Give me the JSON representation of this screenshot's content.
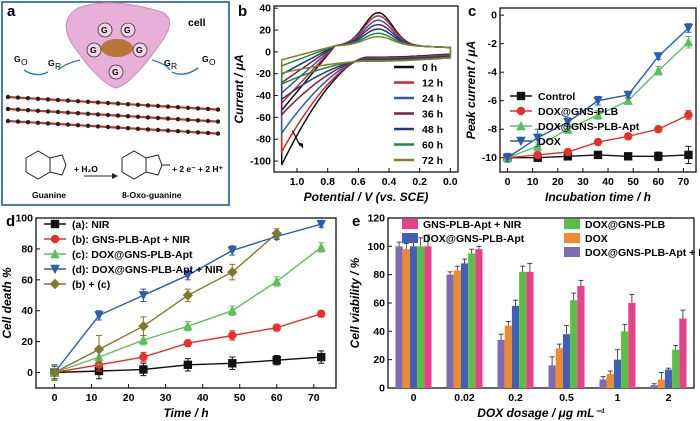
{
  "panel_a": {
    "label": "a",
    "cell_label": "cell",
    "g_o": "G",
    "g_o_sub": "O",
    "g_r": "G",
    "g_r_sub": "R",
    "molecule_left": "Guanine",
    "molecule_right": "8-Oxo-guanine",
    "reaction_water": "+ H₂O",
    "reaction_products": "+ 2 e⁻ + 2 H⁺",
    "colors": {
      "frame": "#4a7ab8",
      "cell": "#e8b0d8",
      "nucleus": "#b8743a",
      "graphene": "#c0392b"
    }
  },
  "chart_data": [
    {
      "panel": "b",
      "type": "line",
      "title": "",
      "xlabel": "Potential / V (vs. SCE)",
      "ylabel": "Current / μA",
      "xlim": [
        1.15,
        -0.05
      ],
      "x_ticks": [
        "1.0",
        "0.8",
        "0.6",
        "0.4",
        "0.2",
        "0.0"
      ],
      "x_tick_values": [
        1.0,
        0.8,
        0.6,
        0.4,
        0.2,
        0.0
      ],
      "y_ticks": [
        "-100",
        "-80",
        "-60",
        "-40",
        "-20",
        "0",
        "20",
        "40"
      ],
      "y_tick_values": [
        -100,
        -80,
        -60,
        -40,
        -20,
        0,
        20,
        40
      ],
      "ylim": [
        -110,
        42
      ],
      "legend_position": "right",
      "series": [
        {
          "name": "0 h",
          "color": "#111111",
          "peak_cathodic": -104,
          "peak_anodic": 30
        },
        {
          "name": "12 h",
          "color": "#d62728",
          "peak_cathodic": -92,
          "peak_anodic": 27
        },
        {
          "name": "24 h",
          "color": "#2a5db0",
          "peak_cathodic": -75,
          "peak_anodic": 23
        },
        {
          "name": "36 h",
          "color": "#7a1f4a",
          "peak_cathodic": -58,
          "peak_anodic": 19
        },
        {
          "name": "48 h",
          "color": "#1a3a8a",
          "peak_cathodic": -44,
          "peak_anodic": 15
        },
        {
          "name": "60 h",
          "color": "#1e8c3a",
          "peak_cathodic": -30,
          "peak_anodic": 11
        },
        {
          "name": "72 h",
          "color": "#8b7d2a",
          "peak_cathodic": -20,
          "peak_anodic": 8
        }
      ]
    },
    {
      "panel": "c",
      "type": "line",
      "xlabel": "Incubation time / h",
      "ylabel": "Peak current / μA",
      "x": [
        0,
        12,
        24,
        36,
        48,
        60,
        72
      ],
      "xlim": [
        -3,
        75
      ],
      "x_ticks": [
        "0",
        "10",
        "20",
        "30",
        "40",
        "50",
        "60",
        "70"
      ],
      "x_tick_values": [
        0,
        10,
        20,
        30,
        40,
        50,
        60,
        70
      ],
      "ylim": [
        -11,
        0.5
      ],
      "y_ticks": [
        "0",
        "-2",
        "-4",
        "-6",
        "-8",
        "-10"
      ],
      "y_tick_values": [
        0,
        -2,
        -4,
        -6,
        -8,
        -10
      ],
      "legend_position": "bottom-left",
      "series": [
        {
          "name": "Control",
          "marker": "square",
          "color": "#111111",
          "values": [
            -10.0,
            -10.0,
            -9.9,
            -9.8,
            -9.9,
            -9.9,
            -9.8
          ],
          "errors": [
            0.3,
            0.2,
            0.2,
            0.2,
            0.2,
            0.3,
            0.6
          ]
        },
        {
          "name": "DOX@GNS-PLB",
          "marker": "circle",
          "color": "#e8302a",
          "values": [
            -10.0,
            -9.8,
            -9.6,
            -8.9,
            -8.5,
            -8.0,
            -7.0
          ],
          "errors": [
            0.3,
            0.2,
            0.2,
            0.2,
            0.2,
            0.2,
            0.3
          ]
        },
        {
          "name": "DOX@GNS-PLB-Apt",
          "marker": "triangle-up",
          "color": "#5cc15c",
          "values": [
            -10.0,
            -9.2,
            -8.0,
            -7.0,
            -6.0,
            -3.9,
            -1.9
          ],
          "errors": [
            0.3,
            0.3,
            0.3,
            0.3,
            0.2,
            0.3,
            0.4
          ]
        },
        {
          "name": "DOX",
          "marker": "triangle-down",
          "color": "#2a5db0",
          "values": [
            -10.0,
            -8.6,
            -7.5,
            -6.0,
            -5.6,
            -2.9,
            -0.9
          ],
          "errors": [
            0.3,
            0.6,
            0.3,
            0.3,
            0.2,
            0.2,
            0.3
          ]
        }
      ]
    },
    {
      "panel": "d",
      "type": "line",
      "xlabel": "Time / h",
      "ylabel": "Cell death %",
      "x": [
        0,
        12,
        24,
        36,
        48,
        60,
        72
      ],
      "xlim": [
        -5,
        76
      ],
      "x_ticks": [
        "0",
        "10",
        "20",
        "30",
        "40",
        "50",
        "60",
        "70"
      ],
      "x_tick_values": [
        0,
        10,
        20,
        30,
        40,
        50,
        60,
        70
      ],
      "ylim": [
        -10,
        100
      ],
      "y_ticks": [
        "0",
        "20",
        "40",
        "60",
        "80",
        "100"
      ],
      "y_tick_values": [
        0,
        20,
        40,
        60,
        80,
        100
      ],
      "legend_position": "top-left",
      "series": [
        {
          "name": "(a): NIR",
          "marker": "square",
          "color": "#111111",
          "values": [
            0,
            1,
            2,
            5,
            6,
            8,
            10
          ],
          "errors": [
            5,
            5,
            4,
            4,
            4,
            3,
            4
          ]
        },
        {
          "name": "(b): GNS-PLB-Apt + NIR",
          "marker": "circle",
          "color": "#e8302a",
          "values": [
            0,
            5,
            10,
            19,
            24,
            29,
            38
          ],
          "errors": [
            4,
            4,
            3,
            2,
            3,
            2,
            2
          ]
        },
        {
          "name": "(c): DOX@GNS-PLB-Apt",
          "marker": "triangle-up",
          "color": "#5cc15c",
          "values": [
            0,
            10,
            21,
            30,
            40,
            59,
            81
          ],
          "errors": [
            5,
            5,
            3,
            3,
            3,
            3,
            3
          ]
        },
        {
          "name": "(d): DOX@GNS-PLB-Apt + NIR",
          "marker": "triangle-down",
          "color": "#2a5db0",
          "values": [
            0,
            37,
            50,
            63,
            79,
            88,
            96
          ],
          "errors": [
            4,
            3,
            4,
            3,
            3,
            2,
            2
          ]
        },
        {
          "name": "(b) + (c)",
          "marker": "diamond",
          "color": "#7d7a2a",
          "values": [
            0,
            15,
            30,
            50,
            65,
            90,
            null
          ],
          "errors": [
            5,
            9,
            6,
            4,
            5,
            3,
            0
          ]
        }
      ]
    },
    {
      "panel": "e",
      "type": "bar",
      "xlabel": "DOX dosage / μg mL⁻¹",
      "ylabel": "Cell viability / %",
      "categories": [
        "0",
        "0.02",
        "0.2",
        "0.5",
        "1",
        "2"
      ],
      "ylim": [
        0,
        120
      ],
      "y_ticks": [
        "0",
        "20",
        "40",
        "60",
        "80",
        "100",
        "120"
      ],
      "y_tick_values": [
        0,
        20,
        40,
        60,
        80,
        100,
        120
      ],
      "legend_position": "top",
      "series": [
        {
          "name": "DOX@GNS-PLB-Apt + NIR",
          "color": "#7e6bb3",
          "values": [
            100,
            80,
            34,
            16,
            6,
            2
          ],
          "errors": [
            3,
            2,
            4,
            6,
            2,
            1
          ]
        },
        {
          "name": "DOX",
          "color": "#f08a2a",
          "values": [
            98,
            83,
            44,
            28,
            10,
            6
          ],
          "errors": [
            4,
            3,
            3,
            3,
            2,
            5
          ]
        },
        {
          "name": "DOX@GNS-PLB-Apt",
          "color": "#3f5fb8",
          "values": [
            100,
            88,
            58,
            38,
            20,
            13
          ],
          "errors": [
            6,
            3,
            4,
            6,
            7,
            1
          ]
        },
        {
          "name": "DOX@GNS-PLB",
          "color": "#5cbf45",
          "values": [
            100,
            95,
            82,
            62,
            40,
            27
          ],
          "errors": [
            6,
            3,
            4,
            5,
            5,
            3
          ]
        },
        {
          "name": "GNS-PLB-Apt + NIR",
          "color": "#e8418a",
          "values": [
            100,
            98,
            82,
            72,
            60,
            49
          ],
          "errors": [
            8,
            2,
            6,
            4,
            6,
            6
          ]
        }
      ],
      "legend_order": [
        "GNS-PLB-Apt + NIR",
        "DOX@GNS-PLB",
        "DOX@GNS-PLB-Apt",
        "DOX",
        "DOX@GNS-PLB-Apt + NIR"
      ]
    }
  ]
}
